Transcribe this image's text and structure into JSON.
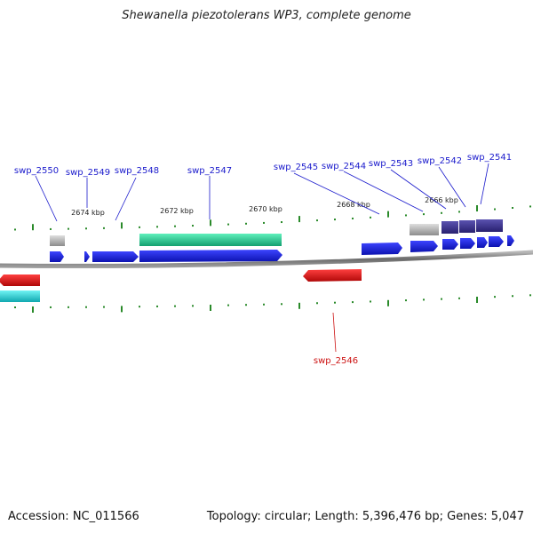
{
  "title": "Shewanella piezotolerans WP3, complete genome",
  "footer": {
    "accession_label": "Accession: NC_011566",
    "summary_label": "Topology: circular; Length: 5,396,476 bp; Genes: 5,047"
  },
  "scale_labels": [
    "2674 kbp",
    "2672 kbp",
    "2670 kbp",
    "2668 kbp",
    "2666 kbp"
  ],
  "gene_labels_forward": [
    "swp_2550",
    "swp_2549",
    "swp_2548",
    "swp_2547",
    "swp_2545",
    "swp_2544",
    "swp_2543",
    "swp_2542",
    "swp_2541"
  ],
  "gene_labels_reverse": [
    "swp_2546"
  ],
  "colors": {
    "label_forward": "#1a1acc",
    "label_reverse": "#cc1111",
    "tick": "#2a8a2a",
    "backbone": "#808080",
    "gene_blue": "#1a22e0",
    "gene_green": "#20c890",
    "gene_gray": "#b0b0b0",
    "gene_purple": "#3c3490",
    "gene_red": "#e01010",
    "gene_cyan": "#20d8d8"
  }
}
